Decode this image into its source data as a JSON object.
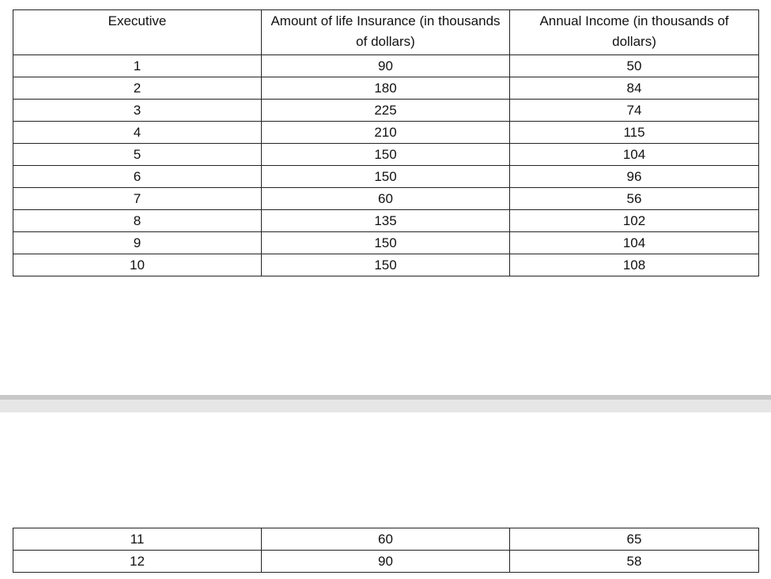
{
  "table": {
    "header": [
      "Executive",
      "Amount of life Insurance (in thousands of dollars)",
      "Annual Income (in thousands of dollars)"
    ],
    "rows": [
      [
        1,
        90,
        50
      ],
      [
        2,
        180,
        84
      ],
      [
        3,
        225,
        74
      ],
      [
        4,
        210,
        115
      ],
      [
        5,
        150,
        104
      ],
      [
        6,
        150,
        96
      ],
      [
        7,
        60,
        56
      ],
      [
        8,
        135,
        102
      ],
      [
        9,
        150,
        104
      ],
      [
        10,
        150,
        108
      ]
    ]
  },
  "continued_table": {
    "rows": [
      [
        11,
        60,
        65
      ],
      [
        12,
        90,
        58
      ]
    ]
  }
}
